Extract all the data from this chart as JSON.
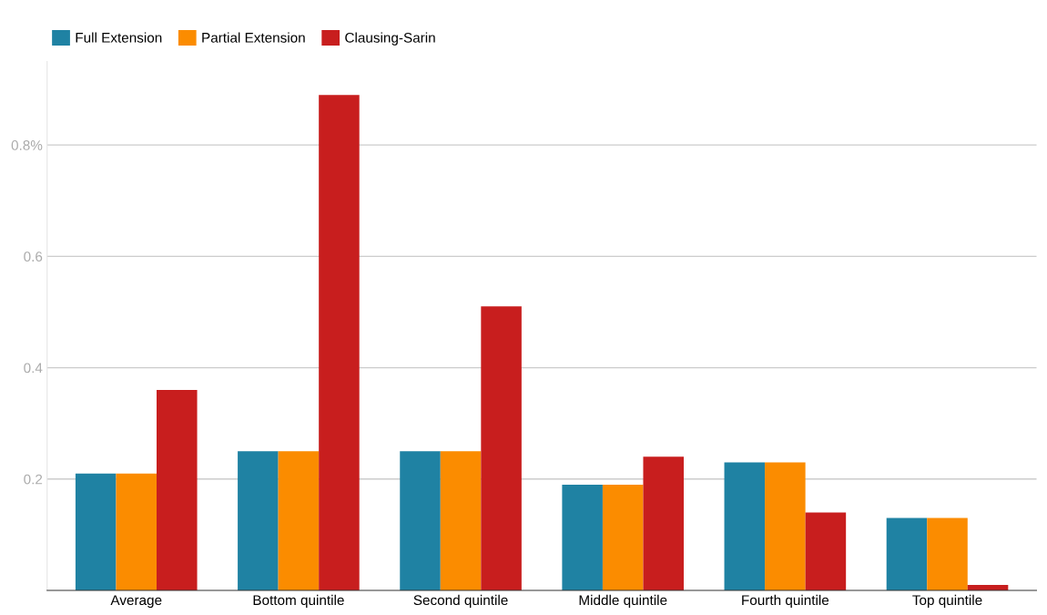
{
  "chart_data": {
    "type": "bar",
    "categories": [
      "Average",
      "Bottom quintile",
      "Second quintile",
      "Middle quintile",
      "Fourth quintile",
      "Top quintile"
    ],
    "series": [
      {
        "name": "Full Extension",
        "color": "#1f82a3",
        "values": [
          0.21,
          0.25,
          0.25,
          0.19,
          0.23,
          0.13
        ]
      },
      {
        "name": "Partial Extension",
        "color": "#fb8c00",
        "values": [
          0.21,
          0.25,
          0.25,
          0.19,
          0.23,
          0.13
        ]
      },
      {
        "name": "Clausing-Sarin",
        "color": "#c81e1e",
        "values": [
          0.36,
          0.89,
          0.51,
          0.24,
          0.14,
          0.01
        ]
      }
    ],
    "ylim": [
      0,
      0.95
    ],
    "yticks": [
      0.2,
      0.4,
      0.6,
      {
        "value": 0.8,
        "label": "0.8%"
      }
    ],
    "grid": "y",
    "legend": "top left"
  }
}
